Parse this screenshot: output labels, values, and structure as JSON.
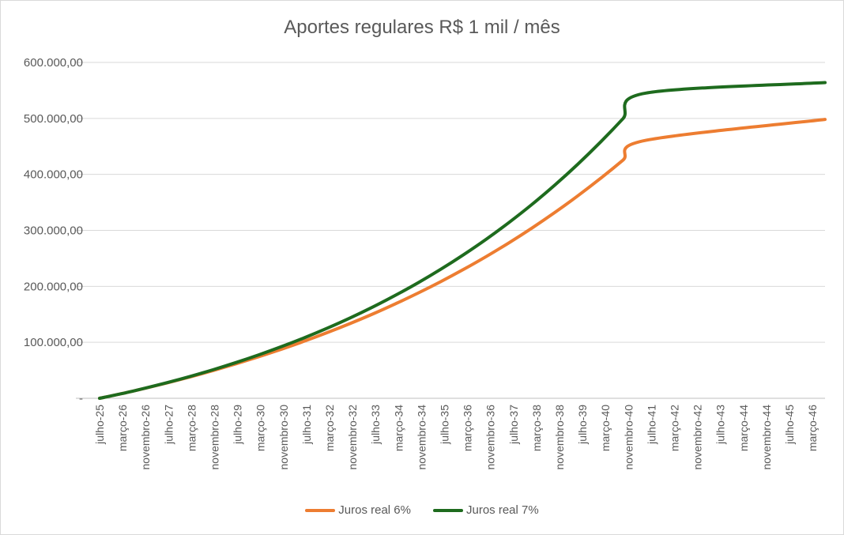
{
  "chart_data": {
    "type": "line",
    "title": "Aportes regulares R$ 1 mil / mês",
    "xlabel": "",
    "ylabel": "",
    "ylim": [
      0,
      600000
    ],
    "y_ticks": [
      "-",
      "100.000,00",
      "200.000,00",
      "300.000,00",
      "400.000,00",
      "500.000,00",
      "600.000,00"
    ],
    "x_ticks": [
      "julho-25",
      "março-26",
      "novembro-26",
      "julho-27",
      "março-28",
      "novembro-28",
      "julho-29",
      "março-30",
      "novembro-30",
      "julho-31",
      "março-32",
      "novembro-32",
      "julho-33",
      "março-34",
      "novembro-34",
      "julho-35",
      "março-36",
      "novembro-36",
      "julho-37",
      "março-38",
      "novembro-38",
      "julho-39",
      "março-40",
      "novembro-40",
      "julho-41",
      "março-42",
      "novembro-42",
      "julho-43",
      "março-44",
      "novembro-44",
      "julho-45",
      "março-46"
    ],
    "grid": true,
    "legend_position": "bottom",
    "series": [
      {
        "name": "Juros real 6%",
        "color": "#ED7D31",
        "values": [
          0,
          8500,
          17900,
          27800,
          38400,
          49600,
          61600,
          74300,
          87800,
          102100,
          117300,
          133400,
          150500,
          168800,
          188100,
          208600,
          230400,
          253500,
          278100,
          304200,
          331900,
          361300,
          392500,
          425600,
          460800,
          498200
        ]
      },
      {
        "name": "Juros real 7%",
        "color": "#1E6B1E",
        "values": [
          0,
          8500,
          18100,
          28300,
          39300,
          51200,
          64000,
          77700,
          92400,
          108200,
          125200,
          143400,
          163000,
          184000,
          206500,
          230700,
          256700,
          284500,
          314400,
          346400,
          380800,
          417700,
          457300,
          499700,
          545200,
          564000
        ]
      }
    ],
    "series_x_months": [
      0,
      8,
      16,
      24,
      32,
      40,
      48,
      56,
      64,
      72,
      80,
      88,
      96,
      104,
      112,
      120,
      128,
      136,
      144,
      152,
      160,
      168,
      176,
      184,
      192,
      255
    ]
  }
}
